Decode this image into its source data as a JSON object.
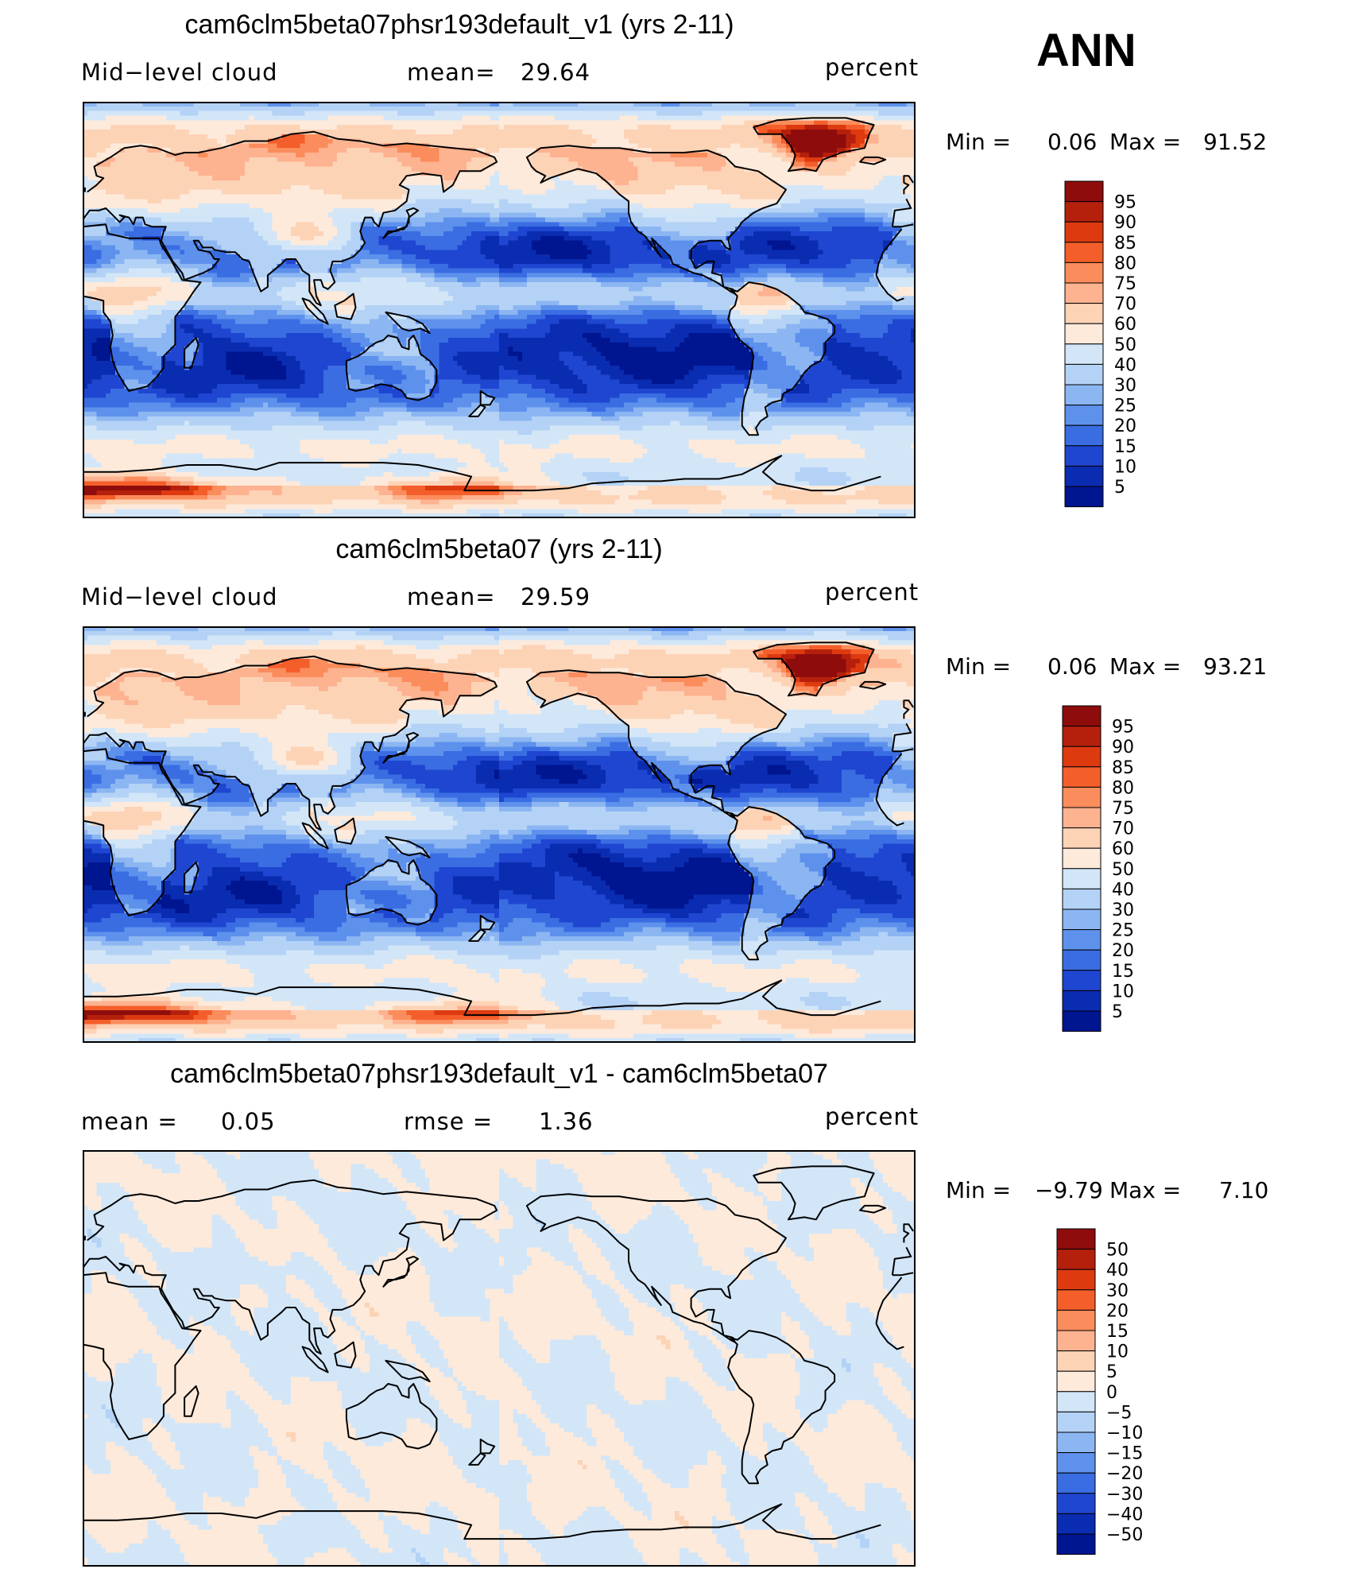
{
  "season": "ANN",
  "panels": [
    {
      "title": "cam6clm5beta07phsr193default_v1 (yrs 2-11)",
      "variable": "Mid−level cloud",
      "stat1_label": "mean=",
      "stat1_value": "29.64",
      "stat2_label": "",
      "stat2_value": "",
      "units": "percent",
      "min_label": "Min  =",
      "min_value": "0.06",
      "max_label": "Max  =",
      "max_value": "91.52",
      "colorbar": {
        "levels": [
          "95",
          "90",
          "85",
          "80",
          "75",
          "70",
          "60",
          "50",
          "40",
          "30",
          "25",
          "20",
          "15",
          "10",
          "5"
        ],
        "colors": [
          "#8e0c0c",
          "#b5200c",
          "#dd3a10",
          "#f45e2a",
          "#fb8c5c",
          "#fdb290",
          "#fdd3b6",
          "#fdeadb",
          "#d2e6f8",
          "#b4d2f5",
          "#8cb6f2",
          "#5e91ec",
          "#3a6de2",
          "#1f46d0",
          "#0a2cb0",
          "#001590"
        ]
      },
      "field": "total_cloud_like"
    },
    {
      "title": "cam6clm5beta07 (yrs 2-11)",
      "variable": "Mid−level cloud",
      "stat1_label": "mean=",
      "stat1_value": "29.59",
      "stat2_label": "",
      "stat2_value": "",
      "units": "percent",
      "min_label": "Min  =",
      "min_value": "0.06",
      "max_label": "Max  =",
      "max_value": "93.21",
      "colorbar": {
        "levels": [
          "95",
          "90",
          "85",
          "80",
          "75",
          "70",
          "60",
          "50",
          "40",
          "30",
          "25",
          "20",
          "15",
          "10",
          "5"
        ],
        "colors": [
          "#8e0c0c",
          "#b5200c",
          "#dd3a10",
          "#f45e2a",
          "#fb8c5c",
          "#fdb290",
          "#fdd3b6",
          "#fdeadb",
          "#d2e6f8",
          "#b4d2f5",
          "#8cb6f2",
          "#5e91ec",
          "#3a6de2",
          "#1f46d0",
          "#0a2cb0",
          "#001590"
        ]
      },
      "field": "total_cloud_like"
    },
    {
      "title": "cam6clm5beta07phsr193default_v1 - cam6clm5beta07",
      "variable": "",
      "stat1_label": "mean  =",
      "stat1_value": "0.05",
      "stat2_label": "rmse  =",
      "stat2_value": "1.36",
      "units": "percent",
      "min_label": "Min  =",
      "min_value": "−9.79",
      "max_label": "Max  =",
      "max_value": "7.10",
      "colorbar": {
        "levels": [
          "50",
          "40",
          "30",
          "20",
          "15",
          "10",
          "5",
          "0",
          "−5",
          "−10",
          "−15",
          "−20",
          "−30",
          "−40",
          "−50"
        ],
        "colors": [
          "#8e0c0c",
          "#b5200c",
          "#dd3a10",
          "#f45e2a",
          "#fb8c5c",
          "#fdb290",
          "#fdd3b6",
          "#fdeadb",
          "#d2e6f8",
          "#b4d2f5",
          "#8cb6f2",
          "#5e91ec",
          "#3a6de2",
          "#1f46d0",
          "#0a2cb0",
          "#001590"
        ]
      },
      "field": "difference"
    }
  ]
}
